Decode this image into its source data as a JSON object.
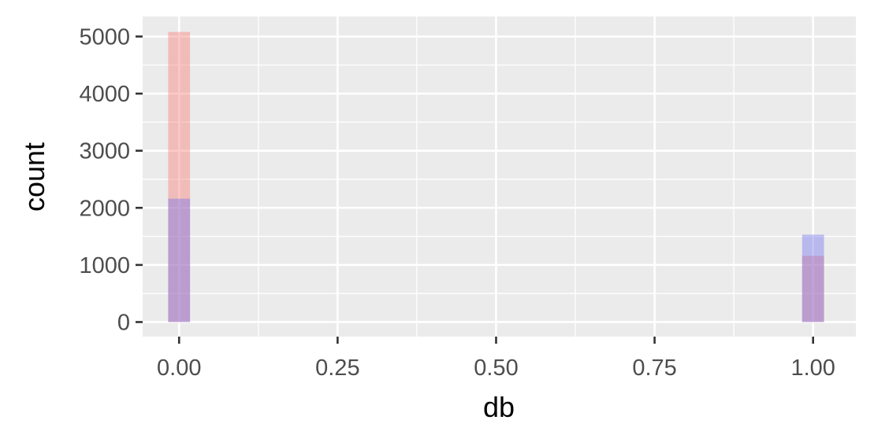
{
  "chart_data": {
    "type": "bar",
    "title": "",
    "xlabel": "db",
    "ylabel": "count",
    "xlim": [
      -0.0575,
      1.0675
    ],
    "ylim": [
      -255,
      5350
    ],
    "x_ticks": [
      0,
      0.25,
      0.5,
      0.75,
      1
    ],
    "x_tick_labels": [
      "0.00",
      "0.25",
      "0.50",
      "0.75",
      "1.00"
    ],
    "y_ticks": [
      0,
      1000,
      2000,
      3000,
      4000,
      5000
    ],
    "y_tick_labels": [
      "0",
      "1000",
      "2000",
      "3000",
      "4000",
      "5000"
    ],
    "bin_width": 0.0345,
    "grid": true,
    "legend": "none",
    "series": [
      {
        "color": "#f8766d",
        "bins": [
          {
            "x": 0,
            "count": 5080
          },
          {
            "x": 1,
            "count": 1160
          }
        ]
      },
      {
        "color": "#6b6bf0",
        "bins": [
          {
            "x": 0,
            "count": 2160
          },
          {
            "x": 1,
            "count": 1530
          }
        ]
      }
    ]
  },
  "style": {
    "panel_background": "#ebebeb",
    "grid_color": "#ffffff",
    "overlap_color": "#b77fc4"
  }
}
